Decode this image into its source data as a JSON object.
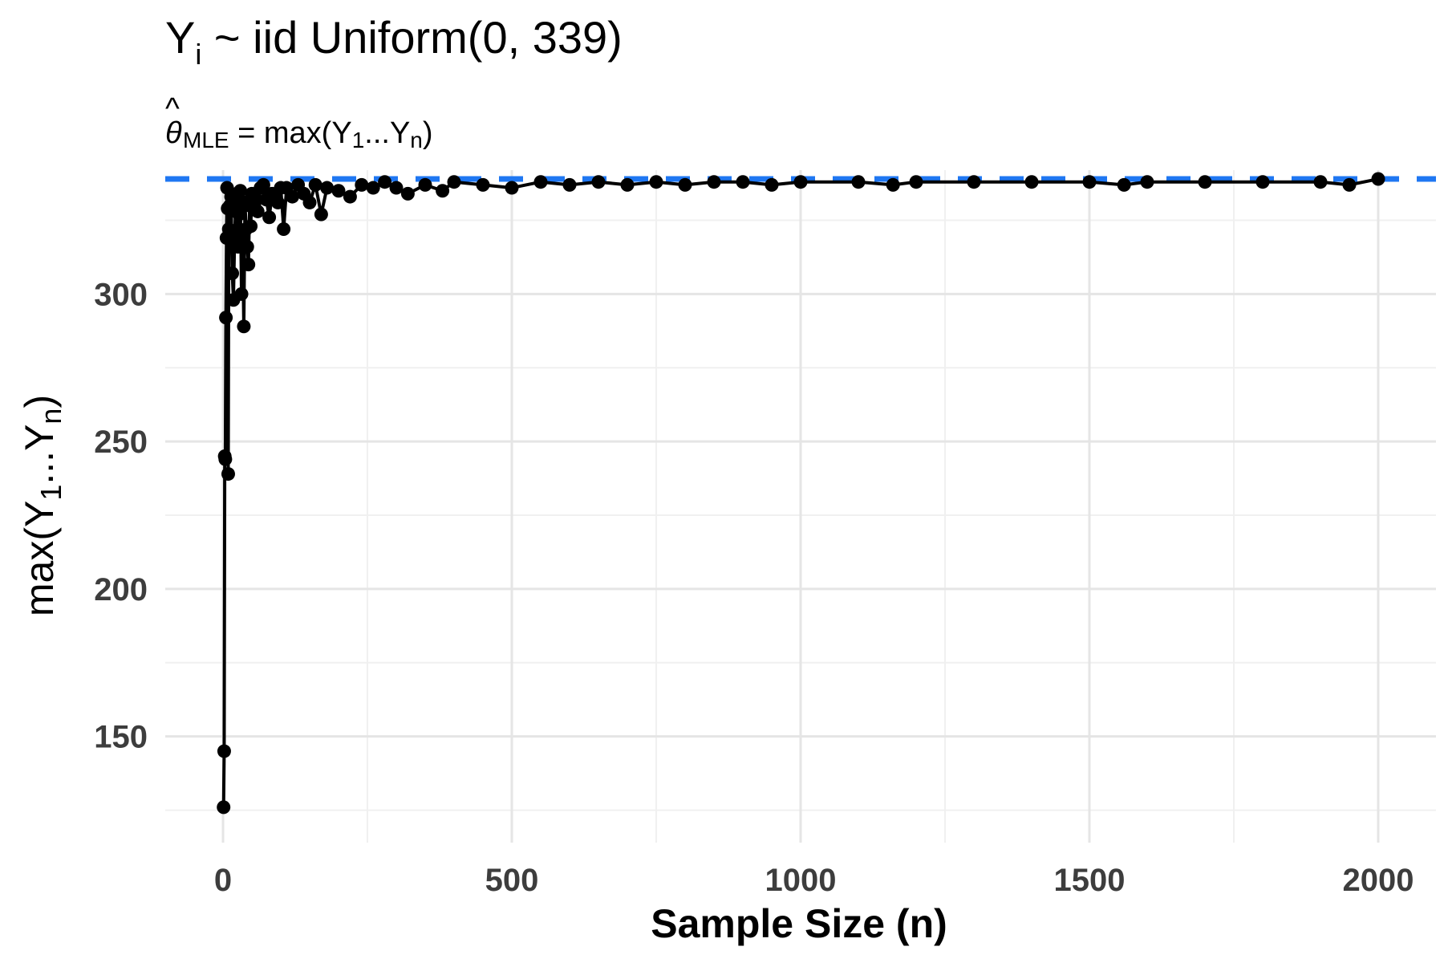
{
  "chart_data": {
    "type": "line",
    "title": "Yi ~ iid Uniform(0, 339)",
    "subtitle": "θ̂MLE = max(Y1...Yn)",
    "xlabel": "Sample Size (n)",
    "ylabel": "max(Y1...Yn)",
    "xlim": [
      -100,
      2100
    ],
    "ylim": [
      114,
      342
    ],
    "x_ticks": [
      0,
      500,
      1000,
      1500,
      2000
    ],
    "y_ticks": [
      150,
      200,
      250,
      300
    ],
    "grid": true,
    "reference_line": {
      "y": 339,
      "style": "dashed",
      "color": "#1f77f2"
    },
    "series": [
      {
        "color": "#000000",
        "points": [
          [
            1,
            126
          ],
          [
            2,
            145
          ],
          [
            3,
            245
          ],
          [
            4,
            244
          ],
          [
            5,
            292
          ],
          [
            6,
            319
          ],
          [
            7,
            336
          ],
          [
            8,
            329
          ],
          [
            9,
            239
          ],
          [
            10,
            322
          ],
          [
            12,
            330
          ],
          [
            14,
            333
          ],
          [
            16,
            307
          ],
          [
            18,
            298
          ],
          [
            20,
            318
          ],
          [
            22,
            331
          ],
          [
            24,
            334
          ],
          [
            26,
            316
          ],
          [
            28,
            327
          ],
          [
            30,
            335
          ],
          [
            32,
            300
          ],
          [
            34,
            320
          ],
          [
            36,
            289
          ],
          [
            38,
            331
          ],
          [
            40,
            322
          ],
          [
            42,
            316
          ],
          [
            44,
            310
          ],
          [
            46,
            330
          ],
          [
            48,
            323
          ],
          [
            50,
            334
          ],
          [
            55,
            331
          ],
          [
            60,
            328
          ],
          [
            65,
            336
          ],
          [
            70,
            337
          ],
          [
            75,
            332
          ],
          [
            80,
            326
          ],
          [
            85,
            334
          ],
          [
            90,
            333
          ],
          [
            95,
            331
          ],
          [
            100,
            336
          ],
          [
            105,
            322
          ],
          [
            110,
            336
          ],
          [
            120,
            333
          ],
          [
            130,
            337
          ],
          [
            140,
            334
          ],
          [
            150,
            331
          ],
          [
            160,
            337
          ],
          [
            170,
            327
          ],
          [
            180,
            336
          ],
          [
            200,
            335
          ],
          [
            220,
            333
          ],
          [
            240,
            337
          ],
          [
            260,
            336
          ],
          [
            280,
            338
          ],
          [
            300,
            336
          ],
          [
            320,
            334
          ],
          [
            350,
            337
          ],
          [
            380,
            335
          ],
          [
            400,
            338
          ],
          [
            450,
            337
          ],
          [
            500,
            336
          ],
          [
            550,
            338
          ],
          [
            600,
            337
          ],
          [
            650,
            338
          ],
          [
            700,
            337
          ],
          [
            750,
            338
          ],
          [
            800,
            337
          ],
          [
            850,
            338
          ],
          [
            900,
            338
          ],
          [
            950,
            337
          ],
          [
            1000,
            338
          ],
          [
            1100,
            338
          ],
          [
            1160,
            337
          ],
          [
            1200,
            338
          ],
          [
            1300,
            338
          ],
          [
            1400,
            338
          ],
          [
            1500,
            338
          ],
          [
            1560,
            337
          ],
          [
            1600,
            338
          ],
          [
            1700,
            338
          ],
          [
            1800,
            338
          ],
          [
            1900,
            338
          ],
          [
            1950,
            337
          ],
          [
            2000,
            339
          ]
        ]
      }
    ]
  }
}
